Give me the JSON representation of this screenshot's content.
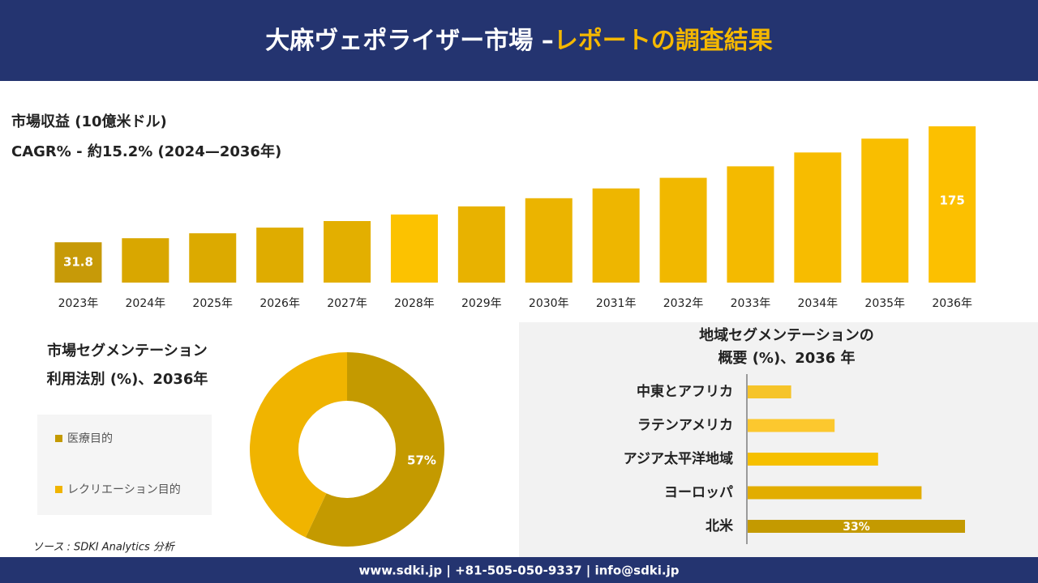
{
  "header": {
    "title_main": "大麻ヴェポライザー市場 –",
    "title_highlight": "レポートの調査結果"
  },
  "chart_data": [
    {
      "type": "bar",
      "orientation": "vertical",
      "title": "市場収益 (10億米ドル)",
      "subtitle": "CAGR% - 約15.2% (2024—2036年)",
      "categories": [
        "2023年",
        "2024年",
        "2025年",
        "2026年",
        "2027年",
        "2028年",
        "2029年",
        "2030年",
        "2031年",
        "2032年",
        "2033年",
        "2034年",
        "2035年",
        "2036年"
      ],
      "values": [
        31.8,
        36.8,
        42.9,
        49.9,
        58.0,
        66.1,
        76.1,
        86.2,
        98.3,
        111.4,
        125.6,
        142.7,
        159.8,
        175
      ],
      "value_labels": [
        "31.8",
        null,
        null,
        null,
        null,
        null,
        null,
        null,
        null,
        null,
        null,
        null,
        null,
        "175"
      ],
      "colors": [
        "#c79a08",
        "#d9a700",
        "#dcaa00",
        "#dfac00",
        "#e3af00",
        "#fcc200",
        "#e8b200",
        "#ebb400",
        "#eeb600",
        "#f1b800",
        "#f4ba00",
        "#f7bc00",
        "#f9be00",
        "#fcc000"
      ]
    },
    {
      "type": "pie",
      "title": "市場セグメンテーション",
      "subtitle": "利用法別 (%)、2036年",
      "categories": [
        "医療目的",
        "レクリエーション目的"
      ],
      "values": [
        57,
        43
      ],
      "value_labels": [
        "57%",
        null
      ],
      "colors": [
        "#c49a00",
        "#f0b400"
      ]
    },
    {
      "type": "bar",
      "orientation": "horizontal",
      "title": "地域セグメンテーションの",
      "subtitle": "概要 (%)、2036 年",
      "categories": [
        "中東とアフリカ",
        "ラテンアメリカ",
        "アジア太平洋地域",
        "ヨーロッパ",
        "北米"
      ],
      "values": [
        6.6,
        13.2,
        19.8,
        26.4,
        33
      ],
      "value_labels": [
        null,
        null,
        null,
        null,
        "33%"
      ],
      "colors": [
        "#f6c42a",
        "#fcc82e",
        "#f6c000",
        "#e2ad00",
        "#c49a00"
      ]
    }
  ],
  "source": "ソース : SDKI Analytics 分析",
  "footer": "www.sdki.jp | +81-505-050-9337 | info@sdki.jp"
}
